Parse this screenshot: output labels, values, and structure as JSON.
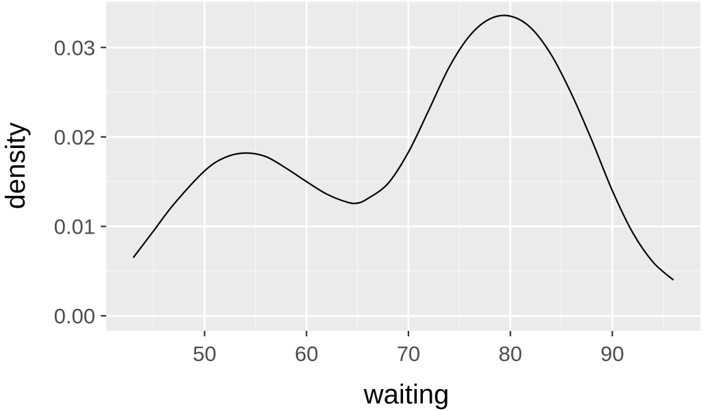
{
  "chart_data": {
    "type": "line",
    "geom": "density",
    "title": "",
    "xlabel": "waiting",
    "ylabel": "density",
    "xlim": [
      40.35,
      98.65
    ],
    "ylim": [
      -0.00168,
      0.03515
    ],
    "x_ticks": [
      50,
      60,
      70,
      80,
      90
    ],
    "x_tick_labels": [
      "50",
      "60",
      "70",
      "80",
      "90"
    ],
    "y_ticks": [
      0.0,
      0.01,
      0.02,
      0.03
    ],
    "y_tick_labels": [
      "0.00",
      "0.01",
      "0.02",
      "0.03"
    ],
    "grid": true,
    "legend": "none",
    "colors": {
      "panel_background": "#ebebeb",
      "grid_major": "#ffffff",
      "grid_minor": "#f5f5f5",
      "line": "#000000",
      "tick_text": "#4d4d4d",
      "axis_title_text": "#000000"
    },
    "series": [
      {
        "x": [
          43,
          45,
          47,
          50,
          52,
          54,
          56,
          58,
          60,
          62,
          64,
          65,
          66,
          68,
          70,
          72,
          74,
          76,
          78,
          80,
          82,
          84,
          86,
          88,
          90,
          92,
          94,
          96
        ],
        "y": [
          0.0065,
          0.0095,
          0.0125,
          0.0162,
          0.0177,
          0.0182,
          0.0178,
          0.0165,
          0.015,
          0.0136,
          0.0127,
          0.0126,
          0.0131,
          0.0148,
          0.0183,
          0.023,
          0.0278,
          0.0313,
          0.0332,
          0.0335,
          0.0322,
          0.0292,
          0.0248,
          0.0196,
          0.014,
          0.0093,
          0.006,
          0.004
        ]
      }
    ]
  }
}
